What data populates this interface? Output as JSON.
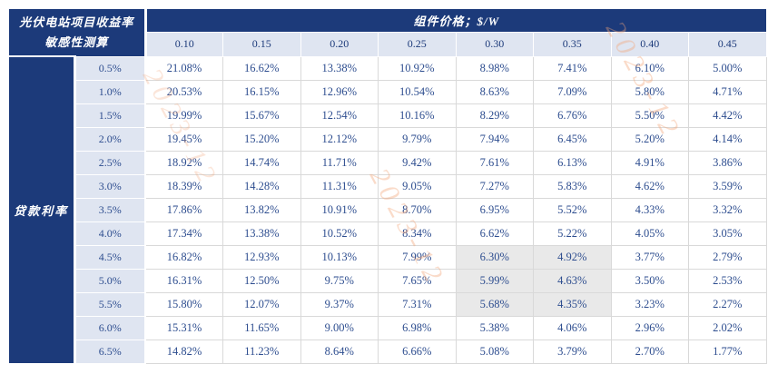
{
  "watermark": {
    "text": "2023-12"
  },
  "colors": {
    "navy_header": "#1c3a7a",
    "light_blue_band": "#dfe5f1",
    "data_text_blue": "#2d4d8f",
    "highlight_gray": "#e9e9e9",
    "grid_line": "#d9d9d9",
    "watermark_peach": "#f3a678"
  },
  "table": {
    "corner_title_line1": "光伏电站项目收益率",
    "corner_title_line2": "敏感性测算",
    "top_header": "组件价格；$/W",
    "axis_label": "贷款利率",
    "col_headers": [
      "0.10",
      "0.15",
      "0.20",
      "0.25",
      "0.30",
      "0.35",
      "0.40",
      "0.45"
    ],
    "rows": [
      {
        "label": "0.5%",
        "values": [
          "21.08%",
          "16.62%",
          "13.38%",
          "10.92%",
          "8.98%",
          "7.41%",
          "6.10%",
          "5.00%"
        ]
      },
      {
        "label": "1.0%",
        "values": [
          "20.53%",
          "16.15%",
          "12.96%",
          "10.54%",
          "8.63%",
          "7.09%",
          "5.80%",
          "4.71%"
        ]
      },
      {
        "label": "1.5%",
        "values": [
          "19.99%",
          "15.67%",
          "12.54%",
          "10.16%",
          "8.29%",
          "6.76%",
          "5.50%",
          "4.42%"
        ]
      },
      {
        "label": "2.0%",
        "values": [
          "19.45%",
          "15.20%",
          "12.12%",
          "9.79%",
          "7.94%",
          "6.45%",
          "5.20%",
          "4.14%"
        ]
      },
      {
        "label": "2.5%",
        "values": [
          "18.92%",
          "14.74%",
          "11.71%",
          "9.42%",
          "7.61%",
          "6.13%",
          "4.91%",
          "3.86%"
        ]
      },
      {
        "label": "3.0%",
        "values": [
          "18.39%",
          "14.28%",
          "11.31%",
          "9.05%",
          "7.27%",
          "5.83%",
          "4.62%",
          "3.59%"
        ]
      },
      {
        "label": "3.5%",
        "values": [
          "17.86%",
          "13.82%",
          "10.91%",
          "8.70%",
          "6.95%",
          "5.52%",
          "4.33%",
          "3.32%"
        ]
      },
      {
        "label": "4.0%",
        "values": [
          "17.34%",
          "13.38%",
          "10.52%",
          "8.34%",
          "6.62%",
          "5.22%",
          "4.05%",
          "3.05%"
        ]
      },
      {
        "label": "4.5%",
        "values": [
          "16.82%",
          "12.93%",
          "10.13%",
          "7.99%",
          "6.30%",
          "4.92%",
          "3.77%",
          "2.79%"
        ]
      },
      {
        "label": "5.0%",
        "values": [
          "16.31%",
          "12.50%",
          "9.75%",
          "7.65%",
          "5.99%",
          "4.63%",
          "3.50%",
          "2.53%"
        ]
      },
      {
        "label": "5.5%",
        "values": [
          "15.80%",
          "12.07%",
          "9.37%",
          "7.31%",
          "5.68%",
          "4.35%",
          "3.23%",
          "2.27%"
        ]
      },
      {
        "label": "6.0%",
        "values": [
          "15.31%",
          "11.65%",
          "9.00%",
          "6.98%",
          "5.38%",
          "4.06%",
          "2.96%",
          "2.02%"
        ]
      },
      {
        "label": "6.5%",
        "values": [
          "14.82%",
          "11.23%",
          "8.64%",
          "6.66%",
          "5.08%",
          "3.79%",
          "2.70%",
          "1.77%"
        ]
      }
    ],
    "highlight": {
      "rows": [
        8,
        9,
        10
      ],
      "cols": [
        4,
        5
      ]
    }
  }
}
